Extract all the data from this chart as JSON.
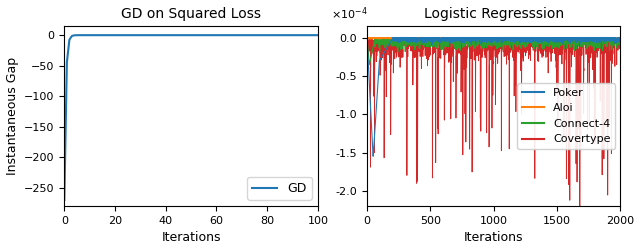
{
  "left_title": "GD on Squared Loss",
  "left_xlabel": "Iterations",
  "left_ylabel": "Instantaneous Gap",
  "left_xlim": [
    0,
    100
  ],
  "left_ylim": [
    -280,
    15
  ],
  "left_yticks": [
    0,
    -50,
    -100,
    -150,
    -200,
    -250
  ],
  "left_xticks": [
    0,
    20,
    40,
    60,
    80,
    100
  ],
  "left_legend": "GD",
  "left_line_color": "#1f77b4",
  "right_title": "Logistic Regresssion",
  "right_xlabel": "Iterations",
  "right_xlim": [
    0,
    2000
  ],
  "right_ylim": [
    -0.00022,
    1.5e-05
  ],
  "right_xticks": [
    0,
    500,
    1000,
    1500,
    2000
  ],
  "right_yticks": [
    0.0,
    -5e-05,
    -0.0001,
    -0.00015,
    -0.0002
  ],
  "series_names": [
    "Poker",
    "Aloi",
    "Connect-4",
    "Covertype"
  ],
  "series_colors": [
    "#1f77b4",
    "#ff7f0e",
    "#2ca02c",
    "#d62728"
  ],
  "fig_width": 6.4,
  "fig_height": 2.5,
  "dpi": 100
}
